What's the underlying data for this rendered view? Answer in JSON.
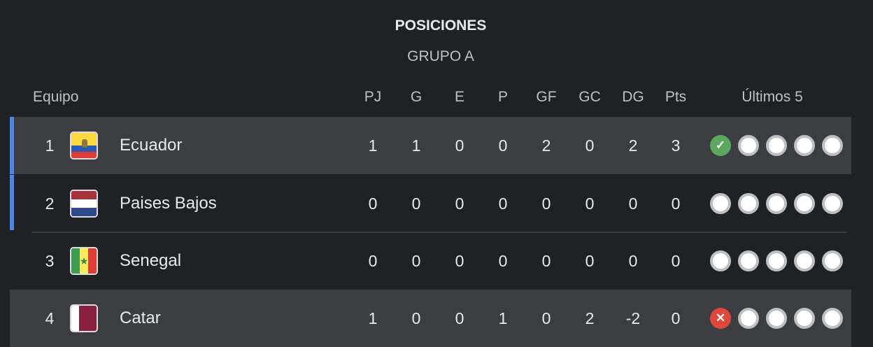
{
  "title": "POSICIONES",
  "subtitle": "GRUPO A",
  "headers": {
    "team": "Equipo",
    "cols": [
      "PJ",
      "G",
      "E",
      "P",
      "GF",
      "GC",
      "DG",
      "Pts"
    ],
    "last5": "Últimos 5"
  },
  "colors": {
    "win": "#5ba85e",
    "loss": "#e0473c",
    "qualify_marker": "#4e86e8"
  },
  "rows": [
    {
      "pos": "1",
      "team": "Ecuador",
      "flag": "ecuador-flag",
      "stats": [
        "1",
        "1",
        "0",
        "0",
        "2",
        "0",
        "2",
        "3"
      ],
      "last5": [
        "win",
        "none",
        "none",
        "none",
        "none"
      ],
      "highlight": true,
      "qualify": true
    },
    {
      "pos": "2",
      "team": "Paises Bajos",
      "flag": "netherlands-flag",
      "stats": [
        "0",
        "0",
        "0",
        "0",
        "0",
        "0",
        "0",
        "0"
      ],
      "last5": [
        "none",
        "none",
        "none",
        "none",
        "none"
      ],
      "highlight": false,
      "qualify": true
    },
    {
      "pos": "3",
      "team": "Senegal",
      "flag": "senegal-flag",
      "stats": [
        "0",
        "0",
        "0",
        "0",
        "0",
        "0",
        "0",
        "0"
      ],
      "last5": [
        "none",
        "none",
        "none",
        "none",
        "none"
      ],
      "highlight": false,
      "qualify": false
    },
    {
      "pos": "4",
      "team": "Catar",
      "flag": "qatar-flag",
      "stats": [
        "1",
        "0",
        "0",
        "1",
        "0",
        "2",
        "-2",
        "0"
      ],
      "last5": [
        "loss",
        "none",
        "none",
        "none",
        "none"
      ],
      "highlight": true,
      "qualify": false
    }
  ]
}
